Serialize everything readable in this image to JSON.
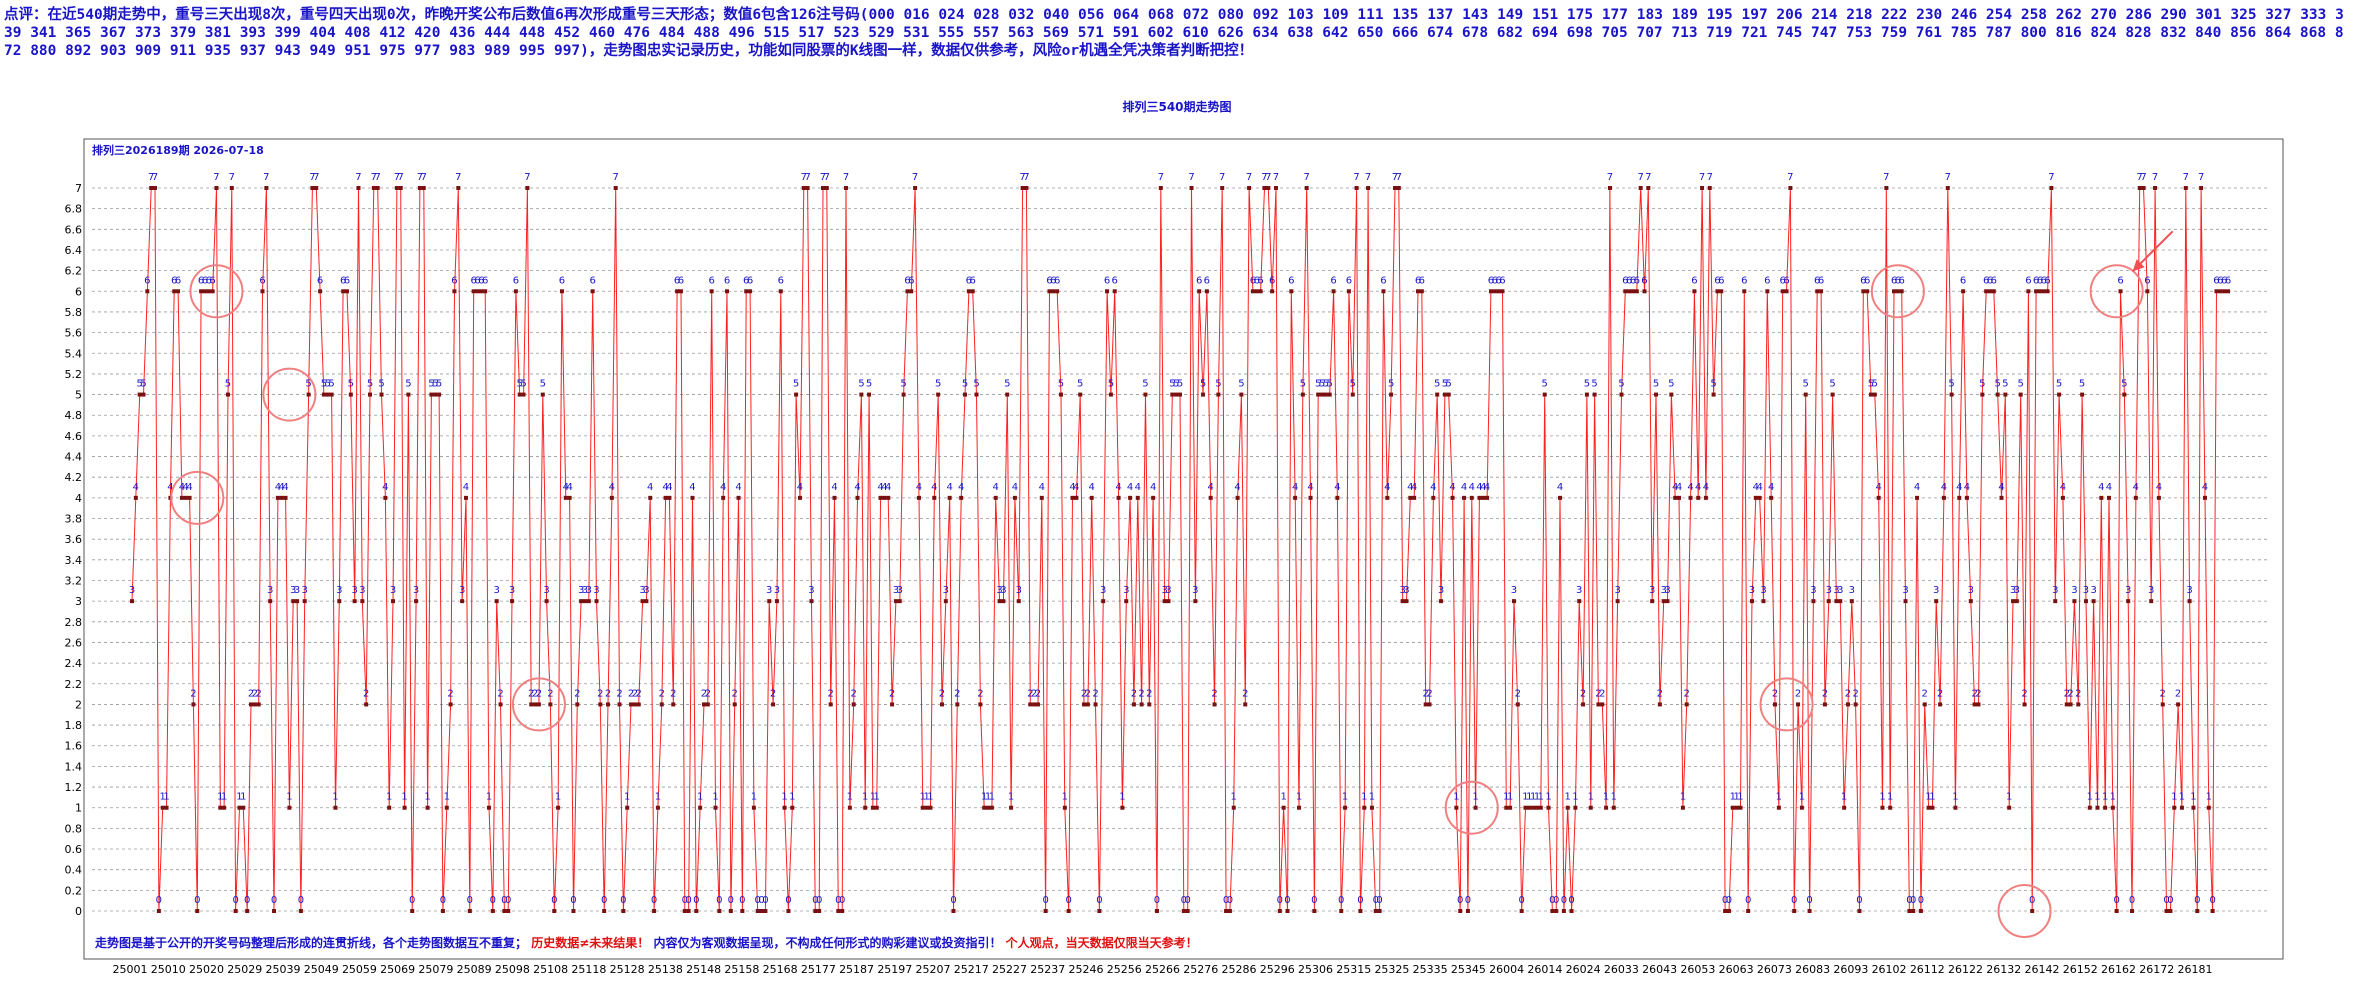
{
  "commentary": "点评：在近540期走势中，重号三天出现8次，重号四天出现0次，昨晚开奖公布后数值6再次形成重号三天形态；数值6包含126注号码(000 016 024 028 032 040 056 064 068 072 080 092 103 109 111 135 137 143 149 151 175 177 183 189 195 197 206 214 218 222 230 246 254 258 262 270 286 290 301 325 327 333 339 341 365 367 373 379 381 393 399 404 408 412 420 436 444 448 452 460 476 484 488 496 515 517 523 529 531 555 557 563 569 571 591 602 610 626 634 638 642 650 666 674 678 682 694 698 705 707 713 719 721 745 747 753 759 761 785 787 800 816 824 828 832 840 856 864 868 872 880 892 903 909 911 935 937 943 949 951 975 977 983 989 995 997)，走势图忠实记录历史，功能如同股票的K线图一样，数据仅供参考，风险or机遇全凭决策者判断把控！",
  "chart_data": {
    "type": "line",
    "title": "排列三540期走势图",
    "subtitle": "排列三2026189期  2026-07-18",
    "xlabel": "",
    "ylabel": "",
    "ylim": [
      0,
      7
    ],
    "yticks": [
      0,
      0.2,
      0.4,
      0.6,
      0.8,
      1,
      1.2,
      1.4,
      1.6,
      1.8,
      2,
      2.2,
      2.4,
      2.6,
      2.8,
      3,
      3.2,
      3.4,
      3.6,
      3.8,
      4,
      4.2,
      4.4,
      4.6,
      4.8,
      5,
      5.2,
      5.4,
      5.6,
      5.8,
      6,
      6.2,
      6.4,
      6.6,
      6.8,
      7
    ],
    "ytick_labels": [
      "0",
      "0.2",
      "0.4",
      "0.6",
      "0.8",
      "1",
      "1.2",
      "1.4",
      "1.6",
      "1.8",
      "2",
      "2.2",
      "2.4",
      "2.6",
      "2.8",
      "3",
      "3.2",
      "3.4",
      "3.6",
      "3.8",
      "4",
      "4.2",
      "4.4",
      "4.6",
      "4.8",
      "5",
      "5.2",
      "5.4",
      "5.6",
      "5.8",
      "6",
      "6.2",
      "6.4",
      "6.6",
      "6.8",
      "7"
    ],
    "grid": true,
    "legend": "none",
    "line_color": "#ff2020",
    "marker_color": "#7a1010",
    "label_color": "#1a14c8",
    "xtick_labels": [
      "25001",
      "25010",
      "25020",
      "25029",
      "25039",
      "25049",
      "25059",
      "25069",
      "25079",
      "25089",
      "25098",
      "25108",
      "25118",
      "25128",
      "25138",
      "25148",
      "25158",
      "25168",
      "25177",
      "25187",
      "25197",
      "25207",
      "25217",
      "25227",
      "25237",
      "25246",
      "25256",
      "25266",
      "25276",
      "25286",
      "25296",
      "25306",
      "25315",
      "25325",
      "25335",
      "25345",
      "26004",
      "26014",
      "26024",
      "26033",
      "26043",
      "26053",
      "26063",
      "26073",
      "26083",
      "26093",
      "26102",
      "26112",
      "26122",
      "26132",
      "26142",
      "26152",
      "26162",
      "26172",
      "26181"
    ],
    "series": [
      {
        "values": [
          3,
          4,
          5,
          5,
          6,
          7,
          7,
          0,
          1,
          1,
          4,
          6,
          6,
          4,
          4,
          4,
          2,
          0,
          6,
          6,
          6,
          6,
          7,
          1,
          1,
          5,
          7,
          0,
          1,
          1,
          0,
          2,
          2,
          2,
          6,
          7,
          3,
          0,
          4,
          4,
          4,
          1,
          3,
          3,
          0,
          3,
          5,
          7,
          7,
          6,
          5,
          5,
          5,
          1,
          3,
          6,
          6,
          5,
          3,
          7,
          3,
          2,
          5,
          7,
          7,
          5,
          4,
          1,
          3,
          7,
          7,
          1,
          5,
          0,
          3,
          7,
          7,
          1,
          5,
          5,
          5,
          0,
          1,
          2,
          6,
          7,
          3,
          4,
          0,
          6,
          6,
          6,
          6,
          1,
          0,
          3,
          2,
          0,
          0,
          3,
          6,
          5,
          5,
          7,
          2,
          2,
          2,
          5,
          3,
          2,
          0,
          1,
          6,
          4,
          4,
          0,
          2,
          3,
          3,
          3,
          6,
          3,
          2,
          0,
          2,
          4,
          7,
          2,
          0,
          1,
          2,
          2,
          2,
          3,
          3,
          4,
          0,
          1,
          2,
          4,
          4,
          2,
          6,
          6,
          0,
          0,
          4,
          0,
          1,
          2,
          2,
          6,
          1,
          0,
          4,
          6,
          0,
          2,
          4,
          0,
          6,
          6,
          1,
          0,
          0,
          0,
          3,
          2,
          3,
          6,
          1,
          0,
          1,
          5,
          4,
          7,
          7,
          3,
          0,
          0,
          7,
          7,
          2,
          4,
          0,
          0,
          7,
          1,
          2,
          4,
          5,
          1,
          5,
          1,
          1,
          4,
          4,
          4,
          2,
          3,
          3,
          5,
          6,
          6,
          7,
          4,
          1,
          1,
          1,
          4,
          5,
          2,
          3,
          4,
          0,
          2,
          4,
          5,
          6,
          6,
          5,
          2,
          1,
          1,
          1,
          4,
          3,
          3,
          5,
          1,
          4,
          3,
          7,
          7,
          2,
          2,
          2,
          4,
          0,
          6,
          6,
          6,
          5,
          1,
          0,
          4,
          4,
          5,
          2,
          2,
          4,
          2,
          0,
          3,
          6,
          5,
          6,
          4,
          1,
          3,
          4,
          2,
          4,
          2,
          5,
          2,
          4,
          0,
          7,
          3,
          3,
          5,
          5,
          5,
          0,
          0,
          7,
          3,
          6,
          5,
          6,
          4,
          2,
          5,
          7,
          0,
          0,
          1,
          4,
          5,
          2,
          7,
          6,
          6,
          6,
          7,
          7,
          6,
          7,
          0,
          1,
          0,
          6,
          4,
          1,
          5,
          7,
          4,
          0,
          5,
          5,
          5,
          5,
          6,
          4,
          0,
          1,
          6,
          5,
          7,
          0,
          1,
          7,
          1,
          0,
          0,
          6,
          4,
          5,
          7,
          7,
          3,
          3,
          4,
          4,
          6,
          6,
          2,
          2,
          4,
          5,
          3,
          5,
          5,
          4,
          1,
          0,
          4,
          0,
          4,
          1,
          4,
          4,
          4,
          6,
          6,
          6,
          6,
          1,
          1,
          3,
          2,
          0,
          1,
          1,
          1,
          1,
          1,
          5,
          1,
          0,
          0,
          4,
          0,
          1,
          0,
          1,
          3,
          2,
          5,
          1,
          5,
          2,
          2,
          1,
          7,
          1,
          3,
          5,
          6,
          6,
          6,
          6,
          7,
          6,
          7,
          3,
          5,
          2,
          3,
          3,
          5,
          4,
          4,
          1,
          2,
          4,
          6,
          4,
          7,
          4,
          7,
          5,
          6,
          6,
          0,
          0,
          1,
          1,
          1,
          6,
          0,
          3,
          4,
          4,
          3,
          6,
          4,
          2,
          1,
          6,
          6,
          7,
          0,
          2,
          1,
          5,
          0,
          3,
          6,
          6,
          2,
          3,
          5,
          3,
          3,
          1,
          2,
          3,
          2,
          0,
          6,
          6,
          5,
          5,
          4,
          1,
          7,
          1,
          6,
          6,
          6,
          3,
          0,
          0,
          4,
          0,
          2,
          1,
          1,
          3,
          2,
          4,
          7,
          5,
          1,
          4,
          6,
          4,
          3,
          2,
          2,
          5,
          6,
          6,
          6,
          5,
          4,
          5,
          1,
          3,
          3,
          5,
          2,
          6,
          0,
          6,
          6,
          6,
          6,
          7,
          3,
          5,
          4,
          2,
          2,
          3,
          2,
          5,
          3,
          1,
          3,
          1,
          4,
          1,
          4,
          1,
          0,
          6,
          5,
          3,
          0,
          4,
          7,
          7,
          6,
          3,
          7,
          4,
          2,
          0,
          0,
          1,
          2,
          1,
          7,
          3,
          1,
          0,
          7,
          4,
          1,
          0,
          6,
          6,
          6,
          6
        ]
      }
    ],
    "annotations": [
      {
        "type": "circle"
      },
      {
        "type": "circle"
      },
      {
        "type": "circle"
      },
      {
        "type": "circle"
      },
      {
        "type": "circle"
      },
      {
        "type": "circle"
      },
      {
        "type": "circle"
      },
      {
        "type": "circle"
      },
      {
        "type": "circle"
      },
      {
        "type": "arrow"
      }
    ]
  },
  "footer": {
    "part1": "走势图是基于公开的开奖号码整理后形成的连贯折线，各个走势图数据互不重复；",
    "part2": "历史数据≠未来结果！",
    "part3": "内容仅为客观数据呈现，不构成任何形式的购彩建议或投资指引！",
    "part4": "个人观点，当天数据仅限当天参考！"
  }
}
